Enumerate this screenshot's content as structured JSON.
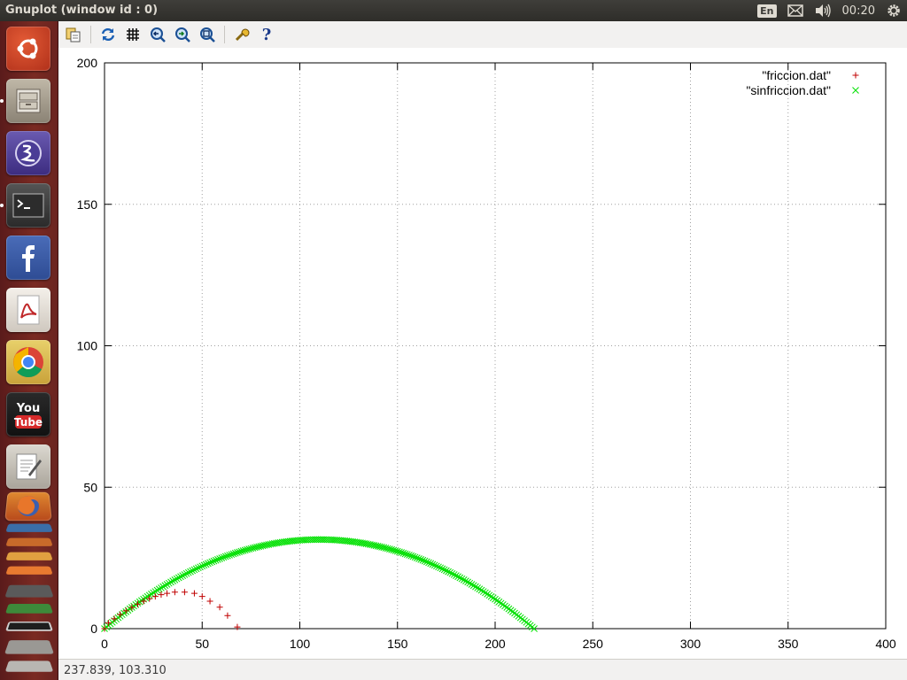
{
  "window": {
    "title": "Gnuplot (window id : 0)"
  },
  "panel": {
    "keyboard": "En",
    "clock": "00:20"
  },
  "launcher": {
    "items": [
      "ubuntu-dash",
      "files",
      "emacs",
      "terminal",
      "facebook",
      "pdf-viewer",
      "chrome",
      "youtube",
      "text-editor",
      "firefox"
    ],
    "stack": [
      "writer",
      "impress",
      "calc",
      "amazon",
      "settings",
      "software"
    ]
  },
  "toolbar": {
    "buttons": [
      "copy-to-clipboard",
      "replot",
      "grid",
      "zoom-previous",
      "zoom-next",
      "unzoom",
      "options",
      "help"
    ],
    "help_label": "?"
  },
  "status": {
    "coords": "237.839, 103.310"
  },
  "chart_data": {
    "type": "scatter",
    "xlim": [
      0,
      400
    ],
    "ylim": [
      0,
      200
    ],
    "xticks": [
      0,
      50,
      100,
      150,
      200,
      250,
      300,
      350,
      400
    ],
    "yticks": [
      0,
      50,
      100,
      150,
      200
    ],
    "grid": true,
    "legend": "top-right",
    "series": [
      {
        "name": "\"friccion.dat\"",
        "marker": "plus",
        "color": "#c00000",
        "x": [
          0,
          2,
          5,
          8,
          11,
          14,
          17,
          20,
          23,
          26,
          29,
          32,
          36,
          41,
          46,
          50,
          54,
          59,
          63,
          68
        ],
        "y": [
          0,
          2,
          3.5,
          5,
          6.3,
          7.5,
          8.7,
          9.7,
          10.6,
          11.4,
          12,
          12.5,
          12.9,
          12.9,
          12.5,
          11.4,
          9.7,
          7.6,
          4.6,
          0.6
        ]
      },
      {
        "name": "\"sinfriccion.dat\"",
        "marker": "cross",
        "color": "#00e000",
        "curve": {
          "x_start": 0,
          "x_end": 220,
          "apex": 31.5,
          "points": 220
        }
      }
    ]
  }
}
